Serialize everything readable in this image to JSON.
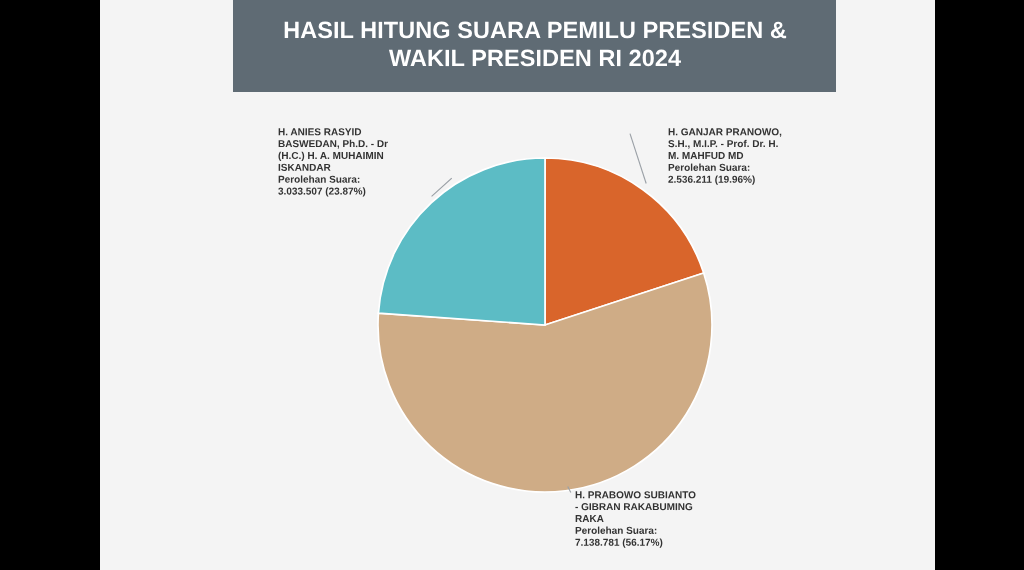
{
  "chart_data": {
    "type": "pie",
    "title": "HASIL HITUNG SUARA PEMILU PRESIDEN &\nWAKIL PRESIDEN RI 2024",
    "categories": [
      "H. GANJAR PRANOWO,\nS.H., M.I.P. - Prof. Dr. H.\nM. MAHFUD MD",
      "H. PRABOWO SUBIANTO\n- GIBRAN RAKABUMING\nRAKA",
      "H. ANIES RASYID\nBASWEDAN, Ph.D. - Dr\n(H.C.) H. A. MUHAIMIN\nISKANDAR"
    ],
    "values": [
      2536211,
      7138781,
      3033507
    ],
    "value_labels": [
      "Perolehan Suara:\n2.536.211 (19.96%)",
      "Perolehan Suara:\n7.138.781 (56.17%)",
      "Perolehan Suara:\n3.033.507 (23.87%)"
    ],
    "colors": [
      "#d9652b",
      "#cfac86",
      "#5cbcc5"
    ],
    "legend": false
  }
}
